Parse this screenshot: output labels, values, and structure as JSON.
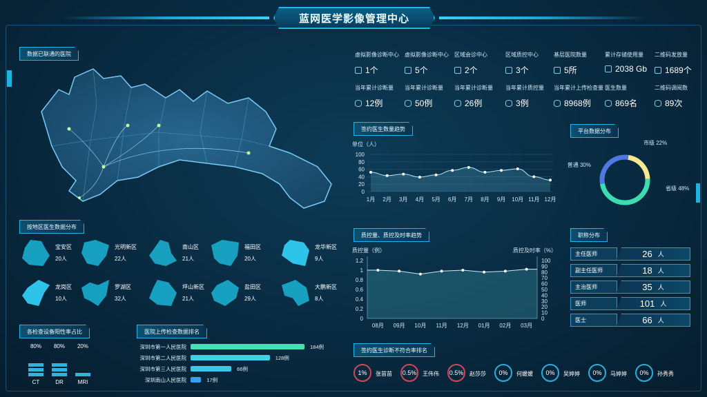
{
  "header": {
    "title": "蓝网医学影像管理中心"
  },
  "map": {
    "badge": "数据已联通的医院"
  },
  "stats": {
    "row1": [
      {
        "label": "虚拟影像诊断中心",
        "value": "1个",
        "icon": "server-icon"
      },
      {
        "label": "虚拟影像诊断中心",
        "value": "5个",
        "icon": "server-icon"
      },
      {
        "label": "区域会诊中心",
        "value": "2个",
        "icon": "server-icon"
      },
      {
        "label": "区域质控中心",
        "value": "3个",
        "icon": "server-icon"
      },
      {
        "label": "基层医院数量",
        "value": "5所",
        "icon": "server-icon"
      },
      {
        "label": "累计存储使用量",
        "value": "2038 Gb",
        "icon": "server-icon"
      },
      {
        "label": "二维码发放量",
        "value": "1689个",
        "icon": "server-icon"
      }
    ],
    "row2": [
      {
        "label": "当年累计诊断量",
        "value": "12例",
        "icon": "database-icon"
      },
      {
        "label": "当年累计诊断量",
        "value": "50例",
        "icon": "database-icon"
      },
      {
        "label": "当年累计诊断量",
        "value": "26例",
        "icon": "database-icon"
      },
      {
        "label": "当年累计质控量",
        "value": "3例",
        "icon": "database-icon"
      },
      {
        "label": "当年累计上传检查量",
        "value": "8968例",
        "icon": "database-icon"
      },
      {
        "label": "医生数量",
        "value": "869名",
        "icon": "database-icon"
      },
      {
        "label": "二维码调阅数",
        "value": "89次",
        "icon": "database-icon"
      }
    ]
  },
  "signed_trend": {
    "badge": "签约医生数量趋势",
    "chart_data": {
      "type": "area",
      "title": "",
      "ylabel": "单位（人）",
      "ylim": [
        0,
        100
      ],
      "yticks": [
        0,
        20,
        40,
        60,
        80,
        100
      ],
      "categories": [
        "1月",
        "2月",
        "3月",
        "4月",
        "5月",
        "6月",
        "7月",
        "8月",
        "9月",
        "10月",
        "11月",
        "12月"
      ],
      "values": [
        52,
        43,
        47,
        39,
        45,
        57,
        65,
        52,
        57,
        61,
        40,
        31
      ]
    }
  },
  "platform": {
    "badge": "平台数据分布",
    "chart_data": {
      "type": "pie",
      "slices": [
        {
          "name": "市级",
          "value": 22,
          "label": "市级 22%",
          "color": "#f3e88e"
        },
        {
          "name": "省级",
          "value": 48,
          "label": "省级 48%",
          "color": "#3ddbb1"
        },
        {
          "name": "普通",
          "value": 30,
          "label": "普通 30%",
          "color": "#4f78e0"
        }
      ]
    }
  },
  "qc_trend": {
    "badge": "质控量、质控及时率趋势",
    "chart_data": {
      "type": "area",
      "ylabel_left": "质控量（例）",
      "ylabel_right": "质控及时率（%）",
      "ylim_left": [
        0,
        1.2
      ],
      "yticks_left": [
        "0",
        "0.2",
        "0.4",
        "0.6",
        "0.8",
        "1",
        "1.2"
      ],
      "ylim_right": [
        0,
        100
      ],
      "yticks_right": [
        "0",
        "10",
        "20",
        "30",
        "40",
        "50",
        "60",
        "70",
        "80",
        "90",
        "100"
      ],
      "categories": [
        "08月",
        "09月",
        "10月",
        "11月",
        "12月",
        "01月",
        "02月",
        "03月"
      ],
      "values": [
        1.0,
        0.98,
        0.92,
        0.98,
        1.0,
        0.96,
        0.98,
        1.02
      ]
    }
  },
  "staff": {
    "badge": "职称分布",
    "rows": [
      {
        "label": "主任医师",
        "value": "26",
        "unit": "人"
      },
      {
        "label": "副主任医师",
        "value": "18",
        "unit": "人"
      },
      {
        "label": "主治医师",
        "value": "35",
        "unit": "人"
      },
      {
        "label": "医师",
        "value": "101",
        "unit": "人"
      },
      {
        "label": "医士",
        "value": "66",
        "unit": "人"
      }
    ]
  },
  "districts": {
    "badge": "按地区医生数据分布",
    "items": [
      {
        "name": "宝安区",
        "count": "20人"
      },
      {
        "name": "光明新区",
        "count": "22人"
      },
      {
        "name": "南山区",
        "count": "21人"
      },
      {
        "name": "福田区",
        "count": "20人"
      },
      {
        "name": "龙华新区",
        "count": "9人"
      },
      {
        "name": "龙岗区",
        "count": "10人"
      },
      {
        "name": "罗湖区",
        "count": "32人"
      },
      {
        "name": "坪山新区",
        "count": "21人"
      },
      {
        "name": "盐田区",
        "count": "29人"
      },
      {
        "name": "大鹏新区",
        "count": "8人"
      }
    ]
  },
  "positive_rate": {
    "badge": "各检查设备阳性率占比",
    "chart_data": {
      "type": "bar",
      "categories": [
        "CT",
        "DR",
        "MRI"
      ],
      "values": [
        80,
        80,
        20
      ],
      "labels": [
        "80%",
        "80%",
        "20%"
      ]
    }
  },
  "upload_rank": {
    "badge": "医院上传检查数据排名",
    "chart_data": {
      "type": "bar",
      "categories": [
        "深圳市第一人民医院",
        "深圳市第二人民医院",
        "深圳市第三人民医院",
        "深圳南山人民医院"
      ],
      "values": [
        184,
        128,
        66,
        17
      ],
      "labels": [
        "184例",
        "128例",
        "66例",
        "17例"
      ],
      "colors": [
        "#46e0b4",
        "#3ed1e8",
        "#3ec6e8",
        "#3b9ee8"
      ]
    }
  },
  "noncompliance": {
    "badge": "签约医生诊断不符合率排名",
    "items": [
      {
        "pct": "1%",
        "name": "张苗苗",
        "alert": true
      },
      {
        "pct": "0.5%",
        "name": "王伟伟",
        "alert": true
      },
      {
        "pct": "0.5%",
        "name": "赵莎莎",
        "alert": true
      },
      {
        "pct": "0%",
        "name": "何媛媛",
        "alert": false
      },
      {
        "pct": "0%",
        "name": "吴婷婷",
        "alert": false
      },
      {
        "pct": "0%",
        "name": "马婷婷",
        "alert": false
      },
      {
        "pct": "0%",
        "name": "孙秀秀",
        "alert": false
      }
    ]
  }
}
